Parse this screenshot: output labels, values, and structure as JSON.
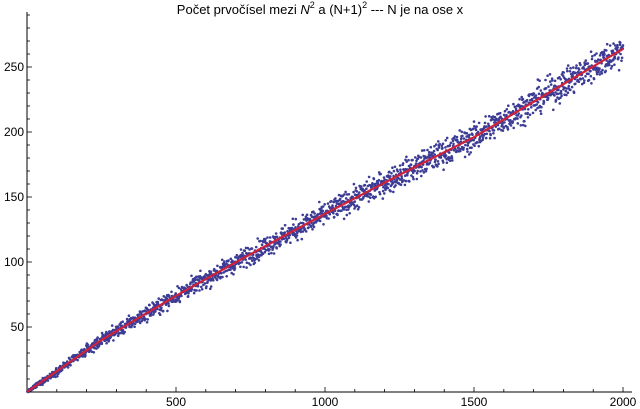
{
  "chart_data": {
    "type": "scatter",
    "title": {
      "prefix": "Počet prvočísel mezi ",
      "var1": "N",
      "sup1": "2",
      "mid": " a (N+1)",
      "sup2": "2",
      "suffix": " --- N je na ose x"
    },
    "xlabel": "",
    "ylabel": "",
    "xlim": [
      0,
      2010
    ],
    "ylim": [
      0,
      290
    ],
    "x_ticks": [
      500,
      1000,
      1500,
      2000
    ],
    "y_ticks": [
      50,
      100,
      150,
      200,
      250
    ],
    "x_minor_step": 100,
    "y_minor_step": 10,
    "grid": false,
    "point_count": 2000,
    "point_color": "#3c3c96",
    "trend_color": "#d0213a",
    "series": [
      {
        "kind": "scatter",
        "x_range": [
          1,
          2000
        ],
        "y_min": 0,
        "y_max": 281,
        "trend_start": [
          0,
          0
        ],
        "trend_end": [
          2000,
          264
        ],
        "spread_at_2000": 15
      },
      {
        "kind": "line",
        "points": [
          [
            0,
            0
          ],
          [
            250,
            40
          ],
          [
            500,
            74
          ],
          [
            750,
            106
          ],
          [
            1000,
            137
          ],
          [
            1250,
            167
          ],
          [
            1500,
            196
          ],
          [
            1750,
            230
          ],
          [
            2000,
            264
          ]
        ]
      }
    ]
  }
}
